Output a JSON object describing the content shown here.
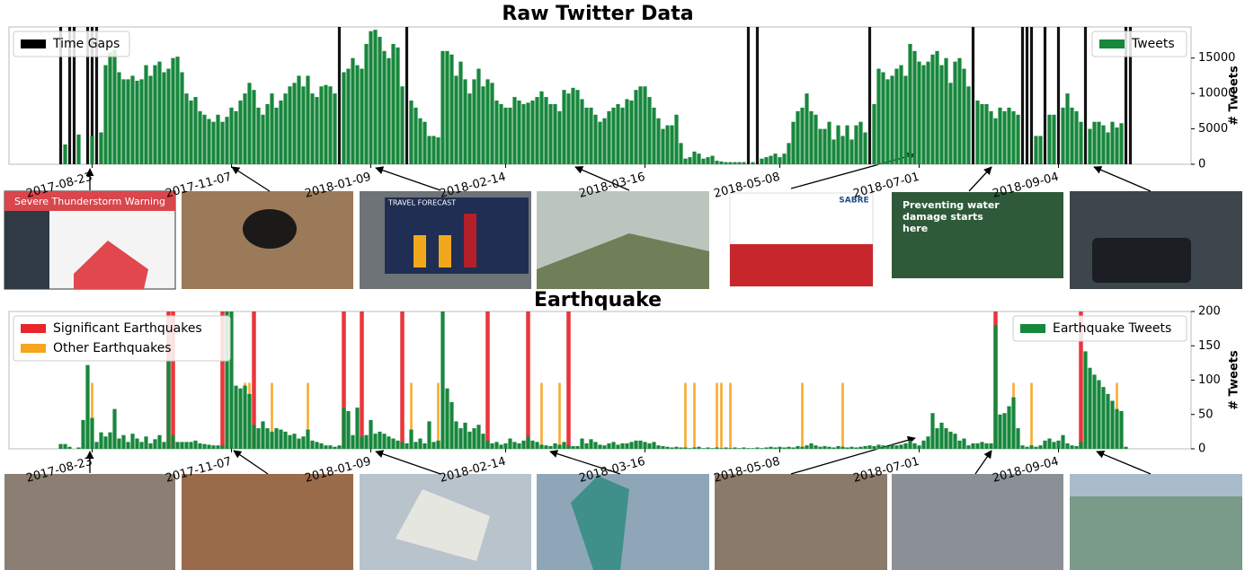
{
  "chart_data": [
    {
      "type": "bar",
      "title": "Raw Twitter Data",
      "ylabel": "# Tweets",
      "categories": [
        null,
        null,
        null,
        null,
        null,
        null,
        null,
        null,
        null,
        null,
        null,
        null,
        null,
        null,
        null,
        null,
        null,
        null,
        "2017-08-23",
        null,
        null,
        null,
        null,
        null,
        null,
        null,
        null,
        null,
        null,
        null,
        null,
        null,
        null,
        null,
        null,
        null,
        null,
        null,
        null,
        null,
        null,
        null,
        null,
        null,
        null,
        null,
        null,
        null,
        null,
        "2017-11-07",
        null,
        null,
        null,
        null,
        null,
        null,
        null,
        null,
        null,
        null,
        null,
        null,
        null,
        null,
        null,
        null,
        null,
        null,
        null,
        null,
        null,
        null,
        null,
        null,
        null,
        null,
        null,
        null,
        null,
        null,
        "2018-01-09",
        null,
        null,
        null,
        null,
        null,
        null,
        null,
        null,
        null,
        null,
        null,
        null,
        null,
        null,
        null,
        null,
        null,
        null,
        null,
        null,
        null,
        null,
        null,
        null,
        null,
        null,
        null,
        null,
        null,
        "2018-02-14",
        null,
        null,
        null,
        null,
        null,
        null,
        null,
        null,
        null,
        null,
        null,
        null,
        null,
        null,
        null,
        null,
        null,
        null,
        null,
        null,
        null,
        null,
        null,
        null,
        null,
        null,
        null,
        null,
        null,
        null,
        "2018-03-16",
        null,
        null,
        null,
        null,
        null,
        null,
        null,
        null,
        null,
        null,
        null,
        null,
        null,
        null,
        null,
        null,
        null,
        null,
        null,
        null,
        null,
        null,
        null,
        null,
        null,
        null,
        null,
        null,
        null,
        "2018-05-08",
        null,
        null,
        null,
        null,
        null,
        null,
        null,
        null,
        null,
        null,
        null,
        null,
        null,
        null,
        null,
        null,
        null,
        null,
        null,
        null,
        null,
        null,
        null,
        null,
        null,
        null,
        null,
        null,
        null,
        null,
        "2018-07-01",
        null,
        null,
        null,
        null,
        null,
        null,
        null,
        null,
        null,
        null,
        null,
        null,
        null,
        null,
        null,
        null,
        null,
        null,
        null,
        null,
        null,
        null,
        null,
        null,
        null,
        null,
        null,
        null,
        null,
        null,
        "2018-09-04",
        null,
        null,
        null,
        null,
        null,
        null,
        null,
        null,
        null,
        null,
        null,
        null,
        null,
        null,
        null,
        null,
        null,
        null,
        null,
        null,
        null,
        null,
        null,
        null,
        null,
        null,
        null,
        null,
        null
      ],
      "series": [
        {
          "name": "Tweets",
          "color": "#17873c",
          "values": [
            0,
            0,
            0,
            0,
            0,
            0,
            0,
            0,
            0,
            0,
            0,
            0,
            2800,
            0,
            0,
            4200,
            0,
            0,
            4000,
            0,
            4500,
            14000,
            15800,
            16200,
            13000,
            12000,
            12000,
            12500,
            11800,
            12000,
            14000,
            12500,
            14000,
            14500,
            13000,
            13500,
            15000,
            15200,
            13000,
            10000,
            9000,
            9500,
            7500,
            7000,
            6400,
            6000,
            7000,
            6000,
            6700,
            8000,
            7500,
            9000,
            10000,
            11500,
            10500,
            8000,
            7000,
            8500,
            10000,
            8000,
            9000,
            10000,
            11000,
            11500,
            12500,
            11000,
            12500,
            10000,
            9500,
            11000,
            11200,
            11000,
            10000,
            0,
            13000,
            13500,
            15000,
            14000,
            13500,
            17000,
            18800,
            19000,
            18000,
            16000,
            15000,
            17000,
            16500,
            11000,
            0,
            9000,
            8000,
            6500,
            6000,
            4000,
            4000,
            3800,
            16000,
            16000,
            15500,
            12500,
            14500,
            12000,
            10000,
            12000,
            13500,
            11000,
            12000,
            11500,
            9000,
            8500,
            8000,
            8000,
            9500,
            9000,
            8500,
            8700,
            9000,
            9500,
            10300,
            9500,
            8500,
            8500,
            7500,
            10500,
            10000,
            10800,
            10500,
            9200,
            8000,
            8000,
            7000,
            6000,
            6500,
            7500,
            8000,
            8500,
            8000,
            9200,
            9000,
            10500,
            11000,
            11000,
            9500,
            8000,
            6500,
            5000,
            5500,
            5500,
            7000,
            3000,
            800,
            1000,
            1800,
            1500,
            800,
            1000,
            1200,
            500,
            400,
            300,
            300,
            300,
            300,
            300,
            0,
            300,
            0,
            800,
            1000,
            1200,
            1500,
            1000,
            1500,
            3000,
            6000,
            7500,
            8000,
            10000,
            7500,
            7000,
            5000,
            5000,
            6000,
            3500,
            5500,
            4000,
            5500,
            3500,
            5500,
            6000,
            4500,
            0,
            8500,
            13500,
            13000,
            12000,
            12500,
            13500,
            14000,
            12500,
            17000,
            16000,
            14500,
            14000,
            14500,
            15500,
            16000,
            14000,
            15000,
            11500,
            14500,
            15000,
            13500,
            11000,
            0,
            9000,
            8500,
            8500,
            7500,
            6500,
            8000,
            7500,
            8000,
            7500,
            7000,
            0,
            0,
            0,
            4000,
            4000,
            0,
            7000,
            7000,
            0,
            8000,
            10000,
            8000,
            7500,
            6000,
            0,
            5000,
            6000,
            6000,
            5500,
            4500,
            6000,
            5200,
            5800,
            0,
            0,
            0,
            0,
            0,
            0,
            0,
            0,
            0,
            0,
            0,
            0,
            0,
            0,
            0
          ]
        }
      ],
      "events": [
        {
          "name": "Time Gaps",
          "color": "#000000",
          "positions": [
            11,
            13,
            14,
            17,
            18,
            19,
            73,
            88,
            164,
            166,
            191,
            214,
            225,
            226,
            227,
            230,
            233,
            239,
            248,
            249
          ]
        }
      ],
      "ylim": [
        0,
        19400
      ],
      "yticks": [
        0,
        5000,
        10000,
        15000
      ],
      "event_legend": "upper left",
      "legend": "upper right"
    },
    {
      "type": "bar",
      "title": "Earthquake",
      "ylabel": "# Tweets",
      "categories": [
        null,
        null,
        null,
        null,
        null,
        null,
        null,
        null,
        null,
        null,
        null,
        null,
        null,
        null,
        null,
        null,
        null,
        null,
        "2017-08-23",
        null,
        null,
        null,
        null,
        null,
        null,
        null,
        null,
        null,
        null,
        null,
        null,
        null,
        null,
        null,
        null,
        null,
        null,
        null,
        null,
        null,
        null,
        null,
        null,
        null,
        null,
        null,
        null,
        null,
        null,
        "2017-11-07",
        null,
        null,
        null,
        null,
        null,
        null,
        null,
        null,
        null,
        null,
        null,
        null,
        null,
        null,
        null,
        null,
        null,
        null,
        null,
        null,
        null,
        null,
        null,
        null,
        null,
        null,
        null,
        null,
        null,
        null,
        "2018-01-09",
        null,
        null,
        null,
        null,
        null,
        null,
        null,
        null,
        null,
        null,
        null,
        null,
        null,
        null,
        null,
        null,
        null,
        null,
        null,
        null,
        null,
        null,
        null,
        null,
        null,
        null,
        null,
        null,
        null,
        "2018-02-14",
        null,
        null,
        null,
        null,
        null,
        null,
        null,
        null,
        null,
        null,
        null,
        null,
        null,
        null,
        null,
        null,
        null,
        null,
        null,
        null,
        null,
        null,
        null,
        null,
        null,
        null,
        null,
        null,
        null,
        null,
        "2018-03-16",
        null,
        null,
        null,
        null,
        null,
        null,
        null,
        null,
        null,
        null,
        null,
        null,
        null,
        null,
        null,
        null,
        null,
        null,
        null,
        null,
        null,
        null,
        null,
        null,
        null,
        null,
        null,
        null,
        null,
        "2018-05-08",
        null,
        null,
        null,
        null,
        null,
        null,
        null,
        null,
        null,
        null,
        null,
        null,
        null,
        null,
        null,
        null,
        null,
        null,
        null,
        null,
        null,
        null,
        null,
        null,
        null,
        null,
        null,
        null,
        null,
        null,
        "2018-07-01",
        null,
        null,
        null,
        null,
        null,
        null,
        null,
        null,
        null,
        null,
        null,
        null,
        null,
        null,
        null,
        null,
        null,
        null,
        null,
        null,
        null,
        null,
        null,
        null,
        null,
        null,
        null,
        null,
        null,
        null,
        "2018-09-04",
        null,
        null,
        null,
        null,
        null,
        null,
        null,
        null,
        null,
        null,
        null,
        null,
        null,
        null,
        null,
        null,
        null,
        null,
        null,
        null,
        null,
        null,
        null,
        null,
        null,
        null,
        null,
        null,
        null
      ],
      "series": [
        {
          "name": "Earthquake Tweets",
          "color": "#17873c",
          "values": [
            0,
            0,
            0,
            0,
            0,
            0,
            0,
            0,
            0,
            0,
            0,
            7,
            7,
            3,
            0,
            2,
            42,
            122,
            45,
            10,
            24,
            18,
            24,
            58,
            15,
            20,
            10,
            22,
            15,
            10,
            18,
            8,
            14,
            20,
            10,
            130,
            20,
            10,
            10,
            10,
            10,
            12,
            8,
            7,
            6,
            5,
            5,
            5,
            200,
            200,
            92,
            88,
            92,
            80,
            35,
            30,
            40,
            30,
            25,
            30,
            28,
            25,
            20,
            22,
            15,
            18,
            28,
            12,
            10,
            8,
            5,
            5,
            3,
            5,
            60,
            55,
            20,
            60,
            18,
            20,
            42,
            22,
            25,
            22,
            18,
            15,
            12,
            10,
            8,
            28,
            10,
            15,
            8,
            40,
            10,
            12,
            200,
            88,
            68,
            40,
            30,
            38,
            25,
            30,
            35,
            22,
            12,
            8,
            10,
            6,
            8,
            15,
            10,
            8,
            12,
            18,
            12,
            10,
            6,
            5,
            4,
            8,
            6,
            10,
            5,
            4,
            4,
            15,
            8,
            14,
            10,
            6,
            5,
            8,
            10,
            6,
            8,
            8,
            10,
            12,
            12,
            10,
            8,
            10,
            5,
            4,
            3,
            2,
            3,
            2,
            2,
            1,
            2,
            3,
            1,
            2,
            1,
            2,
            1,
            2,
            1,
            2,
            1,
            2,
            1,
            1,
            2,
            1,
            2,
            3,
            2,
            3,
            2,
            3,
            2,
            4,
            3,
            5,
            8,
            5,
            3,
            4,
            3,
            2,
            4,
            3,
            2,
            3,
            2,
            3,
            4,
            5,
            4,
            6,
            5,
            4,
            6,
            5,
            6,
            8,
            12,
            8,
            5,
            12,
            18,
            52,
            30,
            38,
            30,
            25,
            22,
            12,
            15,
            5,
            8,
            8,
            10,
            8,
            8,
            180,
            50,
            52,
            62,
            75,
            30,
            5,
            3,
            5,
            3,
            5,
            12,
            15,
            10,
            12,
            20,
            8,
            5,
            4,
            10,
            142,
            118,
            108,
            100,
            90,
            80,
            70,
            58,
            55,
            3,
            0,
            0,
            0,
            0,
            0,
            0,
            0,
            0,
            0,
            0,
            0,
            0,
            0,
            0
          ]
        }
      ],
      "events": [
        {
          "name": "Significant Earthquakes",
          "color": "#e8262b",
          "positions": [
            35,
            36,
            47,
            54,
            74,
            78,
            87,
            106,
            115,
            124,
            219,
            238
          ]
        },
        {
          "name": "Other Earthquakes",
          "color": "#f7a51c",
          "positions": [
            18,
            35,
            52,
            53,
            58,
            66,
            89,
            95,
            118,
            122,
            150,
            152,
            157,
            158,
            160,
            176,
            185,
            223,
            227,
            246
          ]
        }
      ],
      "ylim": [
        0,
        200
      ],
      "yticks": [
        0,
        50,
        100,
        150,
        200
      ],
      "event_legend": "upper left",
      "legend": "upper right"
    }
  ],
  "thumbnail_texts": {
    "warning": "Severe Thunderstorm Warning",
    "forecast": "TRAVEL FORECAST",
    "brand": "SABRE",
    "ad": "Preventing water damage starts here"
  }
}
